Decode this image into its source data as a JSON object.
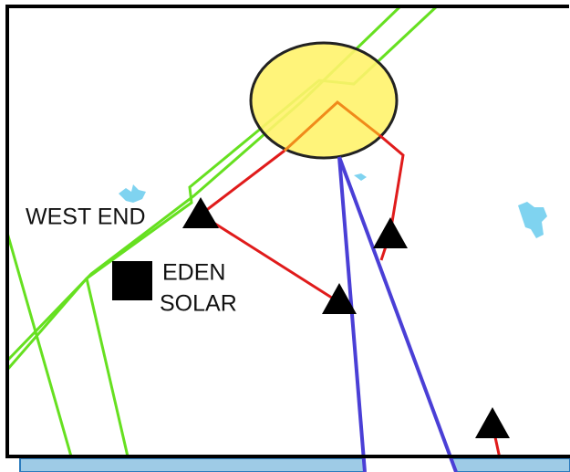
{
  "labels": {
    "west_end": "WEST END",
    "eden_solar": [
      "EDEN",
      "SOLAR"
    ]
  }
}
